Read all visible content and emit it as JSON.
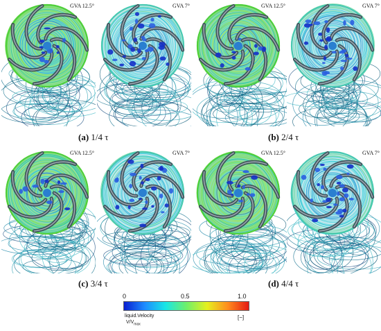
{
  "panels": [
    {
      "gva": "GVA 12.5°",
      "style": "a"
    },
    {
      "gva": "GVA 7°",
      "style": "b"
    },
    {
      "gva": "GVA 12.5°",
      "style": "a"
    },
    {
      "gva": "GVA 7°",
      "style": "b"
    },
    {
      "gva": "GVA 12.5°",
      "style": "a"
    },
    {
      "gva": "GVA 7°",
      "style": "b"
    },
    {
      "gva": "GVA 12.5°",
      "style": "a"
    },
    {
      "gva": "GVA 7°",
      "style": "b"
    }
  ],
  "captions": [
    {
      "letter": "(a)",
      "text": "1/4 τ"
    },
    {
      "letter": "(b)",
      "text": "2/4 τ"
    },
    {
      "letter": "(c)",
      "text": "3/4 τ"
    },
    {
      "letter": "(d)",
      "text": "4/4 τ"
    }
  ],
  "colorbar": {
    "ticks": [
      "0",
      "0.5",
      "1.0"
    ],
    "quantity": "liquid.Velocity",
    "unit_ratio": "V/V",
    "unit_sub": "max",
    "bracket_unit": "[−]",
    "colors": [
      "#0a1fd0",
      "#1e8cff",
      "#19e6e6",
      "#6ff06a",
      "#e6f01e",
      "#ff8c1e",
      "#e61a14"
    ]
  }
}
